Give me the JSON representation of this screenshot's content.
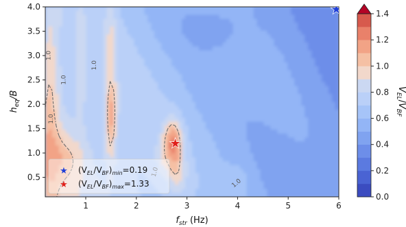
{
  "chart_data": {
    "type": "heatmap",
    "title": "",
    "xlabel_base": "f",
    "xlabel_sub": "str",
    "xlabel_unit": " (Hz)",
    "ylabel_base": "h",
    "ylabel_sub": "eq",
    "ylabel_tail": "/B",
    "xlim": [
      0.2,
      6.0
    ],
    "ylim": [
      0.1,
      4.0
    ],
    "xticks": [
      1,
      2,
      3,
      4,
      5,
      6
    ],
    "yticks": [
      0.5,
      1.0,
      1.5,
      2.0,
      2.5,
      3.0,
      3.5,
      4.0
    ],
    "yticklabels": [
      "0.5",
      "1.0",
      "1.5",
      "2.0",
      "2.5",
      "3.0",
      "3.5",
      "4.0"
    ],
    "colorbar": {
      "label_base": "V",
      "label_num_sub": "EL",
      "label_den_base": "V",
      "label_den_sub": "BF",
      "ticks": [
        "0.0",
        "0.2",
        "0.4",
        "0.6",
        "0.8",
        "1.0",
        "1.2",
        "1.4"
      ],
      "levels": [
        0.0,
        0.1,
        0.2,
        0.3,
        0.4,
        0.5,
        0.6,
        0.7,
        0.8,
        0.9,
        1.0,
        1.1,
        1.2,
        1.3,
        1.4
      ],
      "colors": [
        "#3b4cc0",
        "#4a63d3",
        "#5b7ae0",
        "#6d8ee9",
        "#80a3f0",
        "#93b5f6",
        "#a6c4f8",
        "#bad0f8",
        "#cbd8f2",
        "#f2d8cb",
        "#f5c0a4",
        "#f2a386",
        "#e9816a",
        "#d75a4d",
        "#c03a36"
      ],
      "extend_color": "#b40426"
    },
    "contour_level": 1.0,
    "contour_labels": [
      "1.0",
      "1.0",
      "1.0",
      "1.0",
      "1.0",
      "1.0"
    ],
    "markers": [
      {
        "name": "min",
        "x": 5.95,
        "y": 3.95,
        "value": 0.19,
        "color": "#1f3fd8"
      },
      {
        "name": "max",
        "x": 2.77,
        "y": 1.2,
        "value": 1.33,
        "color": "#e0201b"
      }
    ],
    "legend": [
      {
        "prefix": "(V",
        "s1": "EL",
        "mid": "/V",
        "s2": "BF",
        "close": ")",
        "s3": "min",
        "val": "=0.19",
        "color": "#1f3fd8"
      },
      {
        "prefix": "(V",
        "s1": "EL",
        "mid": "/V",
        "s2": "BF",
        "close": ")",
        "s3": "max",
        "val": "=1.33",
        "color": "#e0201b"
      }
    ],
    "legend_placement": "lower-left"
  }
}
